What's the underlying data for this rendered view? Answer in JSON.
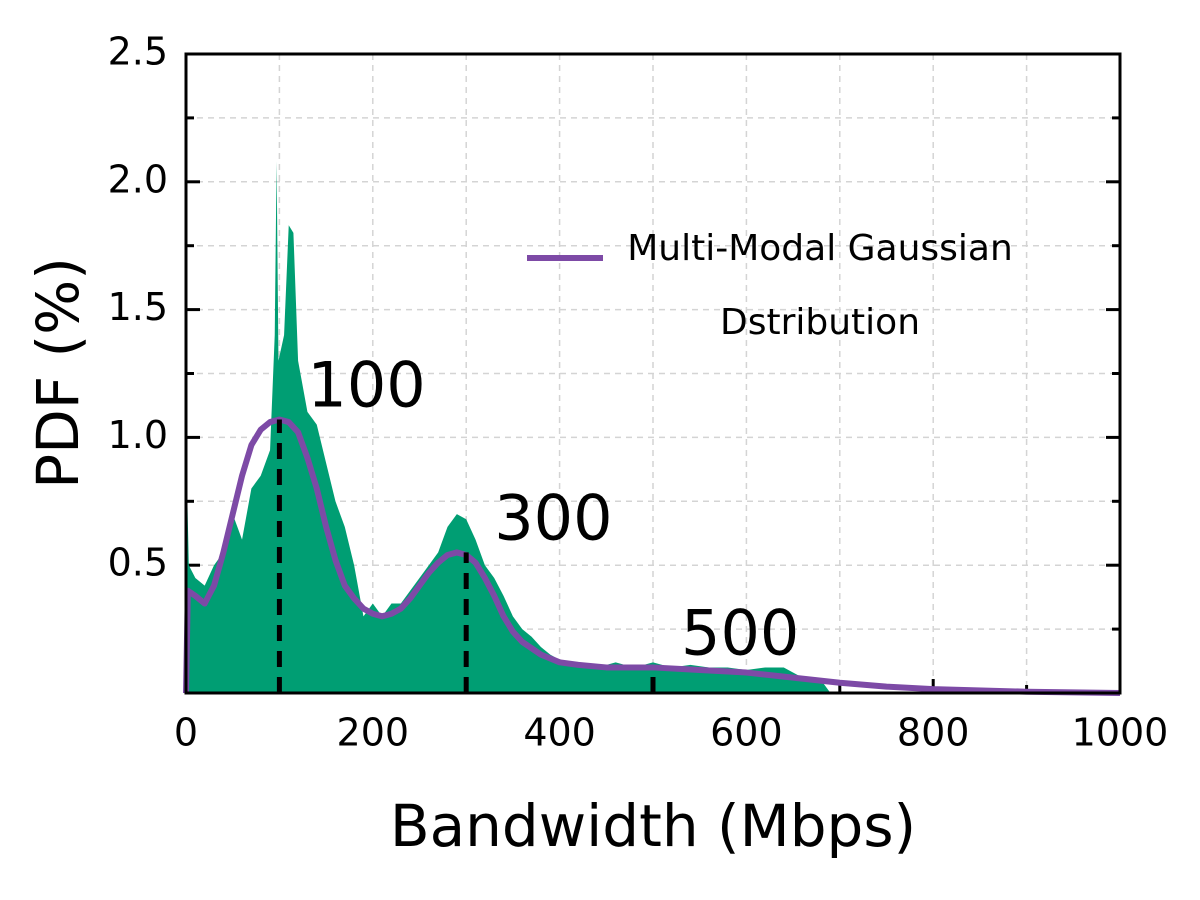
{
  "chart_data": {
    "type": "area-line",
    "xlabel": "Bandwidth (Mbps)",
    "ylabel": "PDF (%)",
    "xlim": [
      0,
      1000
    ],
    "ylim": [
      0,
      2.5
    ],
    "xticks": [
      0,
      200,
      400,
      600,
      800,
      1000
    ],
    "xminorticks": [
      100,
      300,
      500,
      700,
      900
    ],
    "yticks": [
      0.5,
      {
        "value": 1.0,
        "label": "1.0"
      },
      1.5,
      {
        "value": 2.0,
        "label": "2.0"
      },
      2.5
    ],
    "yminorticks": [
      0.25,
      0.75,
      1.25,
      1.75,
      2.25
    ],
    "grid": true,
    "series": [
      {
        "kind": "area",
        "color": "#009e73",
        "x": [
          0,
          3,
          10,
          20,
          30,
          40,
          50,
          60,
          70,
          80,
          90,
          95,
          97,
          99,
          105,
          110,
          115,
          120,
          130,
          140,
          150,
          160,
          170,
          180,
          190,
          200,
          210,
          220,
          230,
          240,
          250,
          260,
          270,
          280,
          290,
          300,
          310,
          320,
          330,
          340,
          350,
          360,
          370,
          380,
          390,
          400,
          420,
          440,
          460,
          480,
          500,
          520,
          540,
          560,
          580,
          600,
          620,
          640,
          660,
          680,
          690,
          1000
        ],
        "values": [
          1.0,
          0.5,
          0.45,
          0.42,
          0.5,
          0.55,
          0.7,
          0.6,
          0.8,
          0.85,
          0.95,
          1.4,
          2.08,
          1.3,
          1.4,
          1.83,
          1.8,
          1.3,
          1.1,
          1.05,
          0.9,
          0.75,
          0.65,
          0.5,
          0.3,
          0.35,
          0.3,
          0.35,
          0.35,
          0.4,
          0.45,
          0.5,
          0.55,
          0.65,
          0.7,
          0.68,
          0.6,
          0.5,
          0.45,
          0.38,
          0.3,
          0.25,
          0.22,
          0.18,
          0.15,
          0.13,
          0.12,
          0.1,
          0.12,
          0.1,
          0.12,
          0.1,
          0.11,
          0.1,
          0.1,
          0.09,
          0.1,
          0.1,
          0.06,
          0.05,
          0,
          0
        ]
      },
      {
        "kind": "line",
        "name": "Multi-Modal Gaussian Dstribution",
        "color": "#7d4aa6",
        "x": [
          0,
          2,
          10,
          20,
          30,
          40,
          50,
          60,
          70,
          80,
          90,
          100,
          110,
          120,
          130,
          140,
          150,
          160,
          170,
          180,
          190,
          200,
          210,
          220,
          230,
          240,
          250,
          260,
          270,
          280,
          290,
          300,
          310,
          320,
          330,
          340,
          350,
          360,
          380,
          400,
          420,
          450,
          500,
          550,
          600,
          650,
          700,
          750,
          800,
          900,
          1000
        ],
        "values": [
          0,
          0.4,
          0.38,
          0.35,
          0.42,
          0.55,
          0.7,
          0.85,
          0.97,
          1.03,
          1.06,
          1.07,
          1.06,
          1.02,
          0.92,
          0.8,
          0.65,
          0.52,
          0.42,
          0.37,
          0.33,
          0.31,
          0.3,
          0.31,
          0.33,
          0.37,
          0.42,
          0.47,
          0.51,
          0.54,
          0.55,
          0.54,
          0.51,
          0.45,
          0.38,
          0.3,
          0.24,
          0.2,
          0.15,
          0.12,
          0.11,
          0.1,
          0.1,
          0.09,
          0.08,
          0.06,
          0.04,
          0.025,
          0.015,
          0.005,
          0
        ]
      }
    ],
    "annotations": [
      {
        "label": "100",
        "x": 100,
        "y": 1.07
      },
      {
        "label": "300",
        "x": 300,
        "y": 0.55
      },
      {
        "label": "500",
        "x": 500,
        "y": 0.1
      }
    ]
  }
}
